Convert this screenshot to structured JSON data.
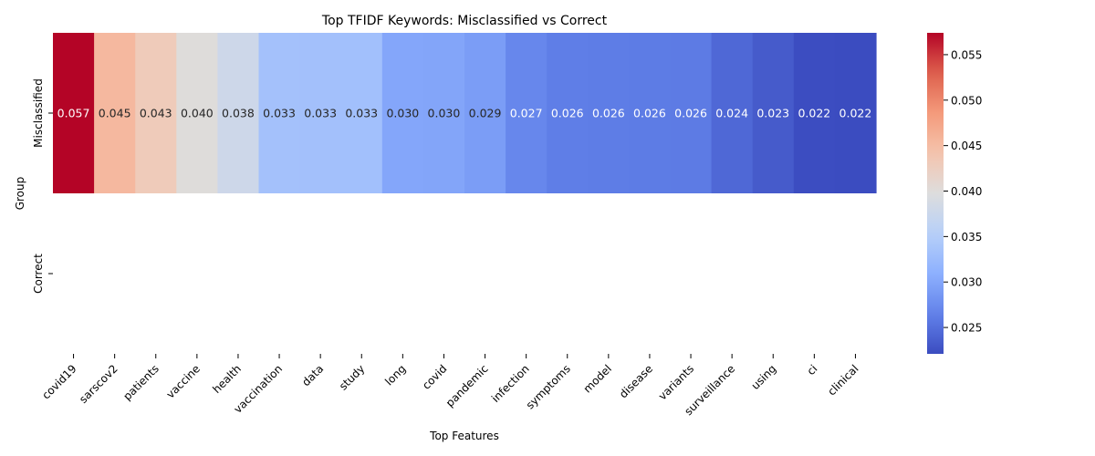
{
  "chart_data": {
    "type": "heatmap",
    "title": "Top TFIDF Keywords: Misclassified vs Correct",
    "xlabel": "Top Features",
    "ylabel": "Group",
    "columns": [
      "covid19",
      "sarscov2",
      "patients",
      "vaccine",
      "health",
      "vaccination",
      "data",
      "study",
      "long",
      "covid",
      "pandemic",
      "infection",
      "symptoms",
      "model",
      "disease",
      "variants",
      "surveillance",
      "using",
      "ci",
      "clinical"
    ],
    "rows": [
      "Misclassified",
      "Correct"
    ],
    "values": [
      [
        0.0574,
        0.0454,
        0.043,
        0.04,
        0.0378,
        0.0333,
        0.0332,
        0.0331,
        0.03,
        0.0299,
        0.0291,
        0.027,
        0.0262,
        0.0261,
        0.026,
        0.0259,
        0.0244,
        0.0233,
        0.0222,
        0.0221
      ],
      [
        null,
        null,
        null,
        null,
        null,
        null,
        null,
        null,
        null,
        null,
        null,
        null,
        null,
        null,
        null,
        null,
        null,
        null,
        null,
        null
      ]
    ],
    "cell_labels": [
      [
        "0.057",
        "0.045",
        "0.043",
        "0.040",
        "0.038",
        "0.033",
        "0.033",
        "0.033",
        "0.030",
        "0.030",
        "0.029",
        "0.027",
        "0.026",
        "0.026",
        "0.026",
        "0.026",
        "0.024",
        "0.023",
        "0.022",
        "0.022"
      ],
      [
        "",
        "",
        "",
        "",
        "",
        "",
        "",
        "",
        "",
        "",
        "",
        "",
        "",
        "",
        "",
        "",
        "",
        "",
        "",
        ""
      ]
    ],
    "colormap": "coolwarm",
    "color_range": [
      0.0221,
      0.0574
    ],
    "colorbar_ticks": [
      0.025,
      0.03,
      0.035,
      0.04,
      0.045,
      0.05,
      0.055
    ],
    "colorbar_tick_labels": [
      "0.025",
      "0.030",
      "0.035",
      "0.040",
      "0.045",
      "0.050",
      "0.055"
    ],
    "legend_placement": "right",
    "grid": false
  }
}
